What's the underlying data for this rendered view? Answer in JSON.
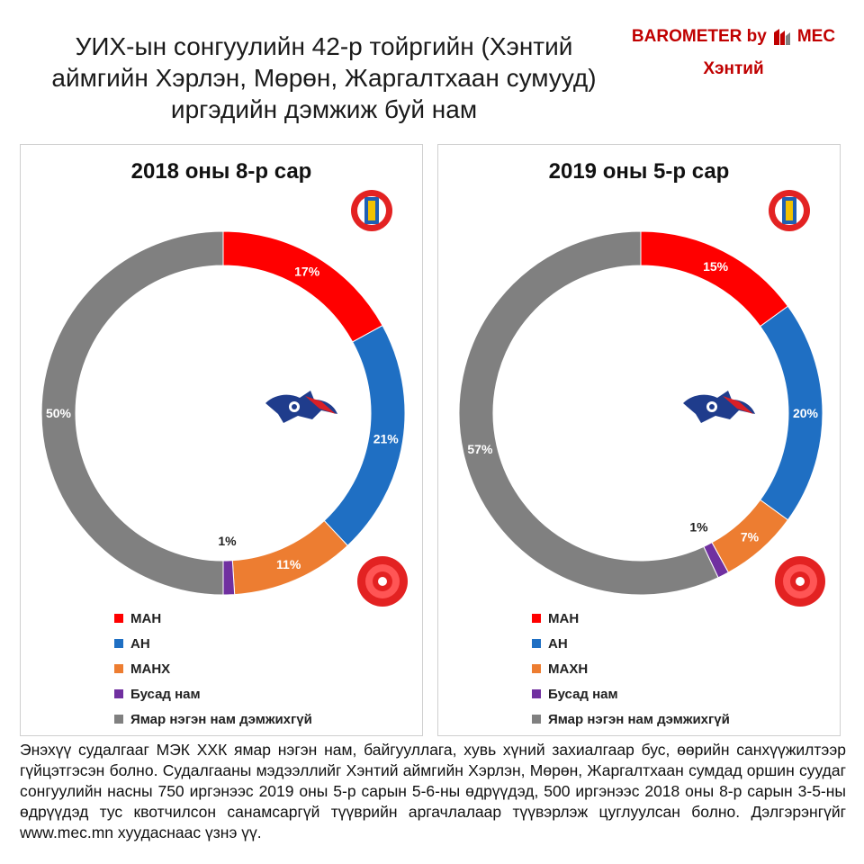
{
  "title": "УИХ-ын сонгуулийн 42-р тойргийн (Хэнтий аймгийн Хэрлэн, Мөрөн, Жаргалтхаан сумууд) иргэдийн дэмжиж буй нам",
  "brand": {
    "text": "BAROMETER by",
    "logo_text": "MEC",
    "region": "Хэнтий"
  },
  "footer": "Энэхүү судалгааг МЭК ХХК ямар нэгэн нам, байгууллага, хувь хүний захиалгаар бус, өөрийн санхүүжилтээр гүйцэтгэсэн болно. Судалгааны мэдээллийг Хэнтий аймгийн Хэрлэн, Мөрөн, Жаргалтхаан сумдад оршин суудаг сонгуулийн насны 750 иргэнээс 2019 оны 5-р сарын 5-6-ны өдрүүдэд, 500 иргэнээс 2018 оны 8-р сарын 3-5-ны өдрүүдэд тус квотчилсон санамсаргүй түүврийн аргачлалаар түүвэрлэж цуглуулсан болно. Дэлгэрэнгүйг www.mec.mn хуудаснаас үзнэ үү.",
  "chart_data": [
    {
      "type": "pie",
      "title": "2018 оны 8-р сар",
      "categories": [
        "МАН",
        "АН",
        "МАНХ",
        "Бусад нам",
        "Ямар нэгэн нам дэмжихгүй"
      ],
      "values": [
        17,
        21,
        11,
        1,
        50
      ],
      "labels": [
        "17%",
        "21%",
        "11%",
        "1%",
        "50%"
      ],
      "colors": [
        "#ff0000",
        "#1f6fc3",
        "#ed7d31",
        "#7030a0",
        "#808080"
      ]
    },
    {
      "type": "pie",
      "title": "2019 оны 5-р сар",
      "categories": [
        "МАН",
        "АН",
        "МАХН",
        "Бусад нам",
        "Ямар нэгэн нам дэмжихгүй"
      ],
      "values": [
        15,
        20,
        7,
        1,
        57
      ],
      "labels": [
        "15%",
        "20%",
        "7%",
        "1%",
        "57%"
      ],
      "colors": [
        "#ff0000",
        "#1f6fc3",
        "#ed7d31",
        "#7030a0",
        "#808080"
      ]
    }
  ]
}
